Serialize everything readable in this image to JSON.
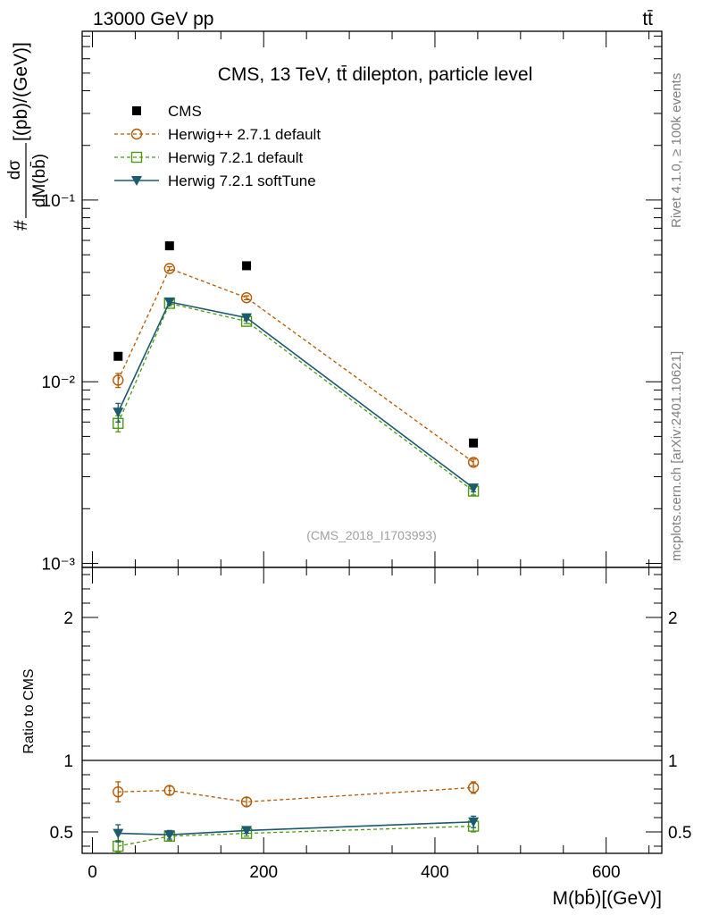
{
  "header": {
    "left": "13000 GeV pp",
    "right": "tt̄"
  },
  "side_labels": {
    "top": "Rivet 4.1.0, ≥ 100k events",
    "bottom": "mcplots.cern.ch [arXiv:2401.10621]"
  },
  "colors": {
    "cms": "#000000",
    "herwigpp": "#b35900",
    "herwig721": "#4c9a13",
    "softtune": "#1c5a6e"
  },
  "chart_data": [
    {
      "type": "line",
      "scale": "log",
      "title": "CMS, 13 TeV, tt̄ dilepton, particle level",
      "watermark": "(CMS_2018_I1703993)",
      "ylabel_num": "dσ",
      "ylabel_den": "dM(bb̄)",
      "ylabel_prefix": "#",
      "ylabel_units": "[(pb)/(GeV)]",
      "ylim": [
        0.00095,
        0.85
      ],
      "ytick_labels": [
        {
          "value": 0.1,
          "label": "10⁻¹"
        },
        {
          "value": 0.01,
          "label": "10⁻²"
        },
        {
          "value": 0.001,
          "label": "10⁻³"
        }
      ],
      "x": [
        30,
        90,
        180,
        445
      ],
      "series": [
        {
          "name": "CMS",
          "key": "cms",
          "style": "data",
          "marker": "square-filled",
          "values": [
            0.0138,
            0.056,
            0.0435,
            0.0046
          ],
          "err_lo": [
            0,
            0,
            0,
            0
          ],
          "err_hi": [
            0,
            0,
            0,
            0
          ]
        },
        {
          "name": "Herwig++ 2.7.1 default",
          "key": "herwigpp",
          "style": "dashed",
          "marker": "circle-open",
          "values": [
            0.0102,
            0.042,
            0.029,
            0.0036
          ],
          "err_lo": [
            0.0009,
            0.001,
            0.0007,
            0.00015
          ],
          "err_hi": [
            0.0009,
            0.001,
            0.0007,
            0.00015
          ]
        },
        {
          "name": "Herwig 7.2.1 default",
          "key": "herwig721",
          "style": "dashed",
          "marker": "square-open",
          "values": [
            0.0059,
            0.027,
            0.0215,
            0.0025
          ],
          "err_lo": [
            0.0006,
            0.0008,
            0.0006,
            0.00012
          ],
          "err_hi": [
            0.0006,
            0.0008,
            0.0006,
            0.00012
          ]
        },
        {
          "name": "Herwig 7.2.1 softTune",
          "key": "softtune",
          "style": "solid",
          "marker": "triangle-down-filled",
          "values": [
            0.0068,
            0.0275,
            0.0225,
            0.0026
          ],
          "err_lo": [
            0.0008,
            0.0008,
            0.0006,
            0.00012
          ],
          "err_hi": [
            0.0008,
            0.0008,
            0.0006,
            0.00012
          ]
        }
      ]
    },
    {
      "type": "line",
      "scale": "linear",
      "ylabel": "Ratio to CMS",
      "xlabel": "M(bb̄)[(GeV)]",
      "xlim": [
        -12,
        665
      ],
      "ylim": [
        0.35,
        2.35
      ],
      "xticks": [
        0,
        200,
        400,
        600
      ],
      "xtick_labels": [
        "0",
        "200",
        "400",
        "600"
      ],
      "yticks": [
        0.5,
        1,
        2
      ],
      "ytick_labels": [
        "0.5",
        "1",
        "2"
      ],
      "reference": 1,
      "x": [
        30,
        90,
        180,
        445
      ],
      "series": [
        {
          "name": "Herwig++ 2.7.1 default",
          "key": "herwigpp",
          "style": "dashed",
          "marker": "circle-open",
          "values": [
            0.78,
            0.79,
            0.71,
            0.81
          ],
          "err_lo": [
            0.07,
            0.03,
            0.03,
            0.04
          ],
          "err_hi": [
            0.07,
            0.03,
            0.03,
            0.04
          ]
        },
        {
          "name": "Herwig 7.2.1 default",
          "key": "herwig721",
          "style": "dashed",
          "marker": "square-open",
          "values": [
            0.4,
            0.47,
            0.49,
            0.54
          ],
          "err_lo": [
            0.04,
            0.03,
            0.02,
            0.04
          ],
          "err_hi": [
            0.04,
            0.03,
            0.02,
            0.04
          ]
        },
        {
          "name": "Herwig 7.2.1 softTune",
          "key": "softtune",
          "style": "solid",
          "marker": "triangle-down-filled",
          "values": [
            0.49,
            0.48,
            0.51,
            0.57
          ],
          "err_lo": [
            0.06,
            0.03,
            0.02,
            0.04
          ],
          "err_hi": [
            0.06,
            0.03,
            0.02,
            0.04
          ]
        }
      ]
    }
  ]
}
